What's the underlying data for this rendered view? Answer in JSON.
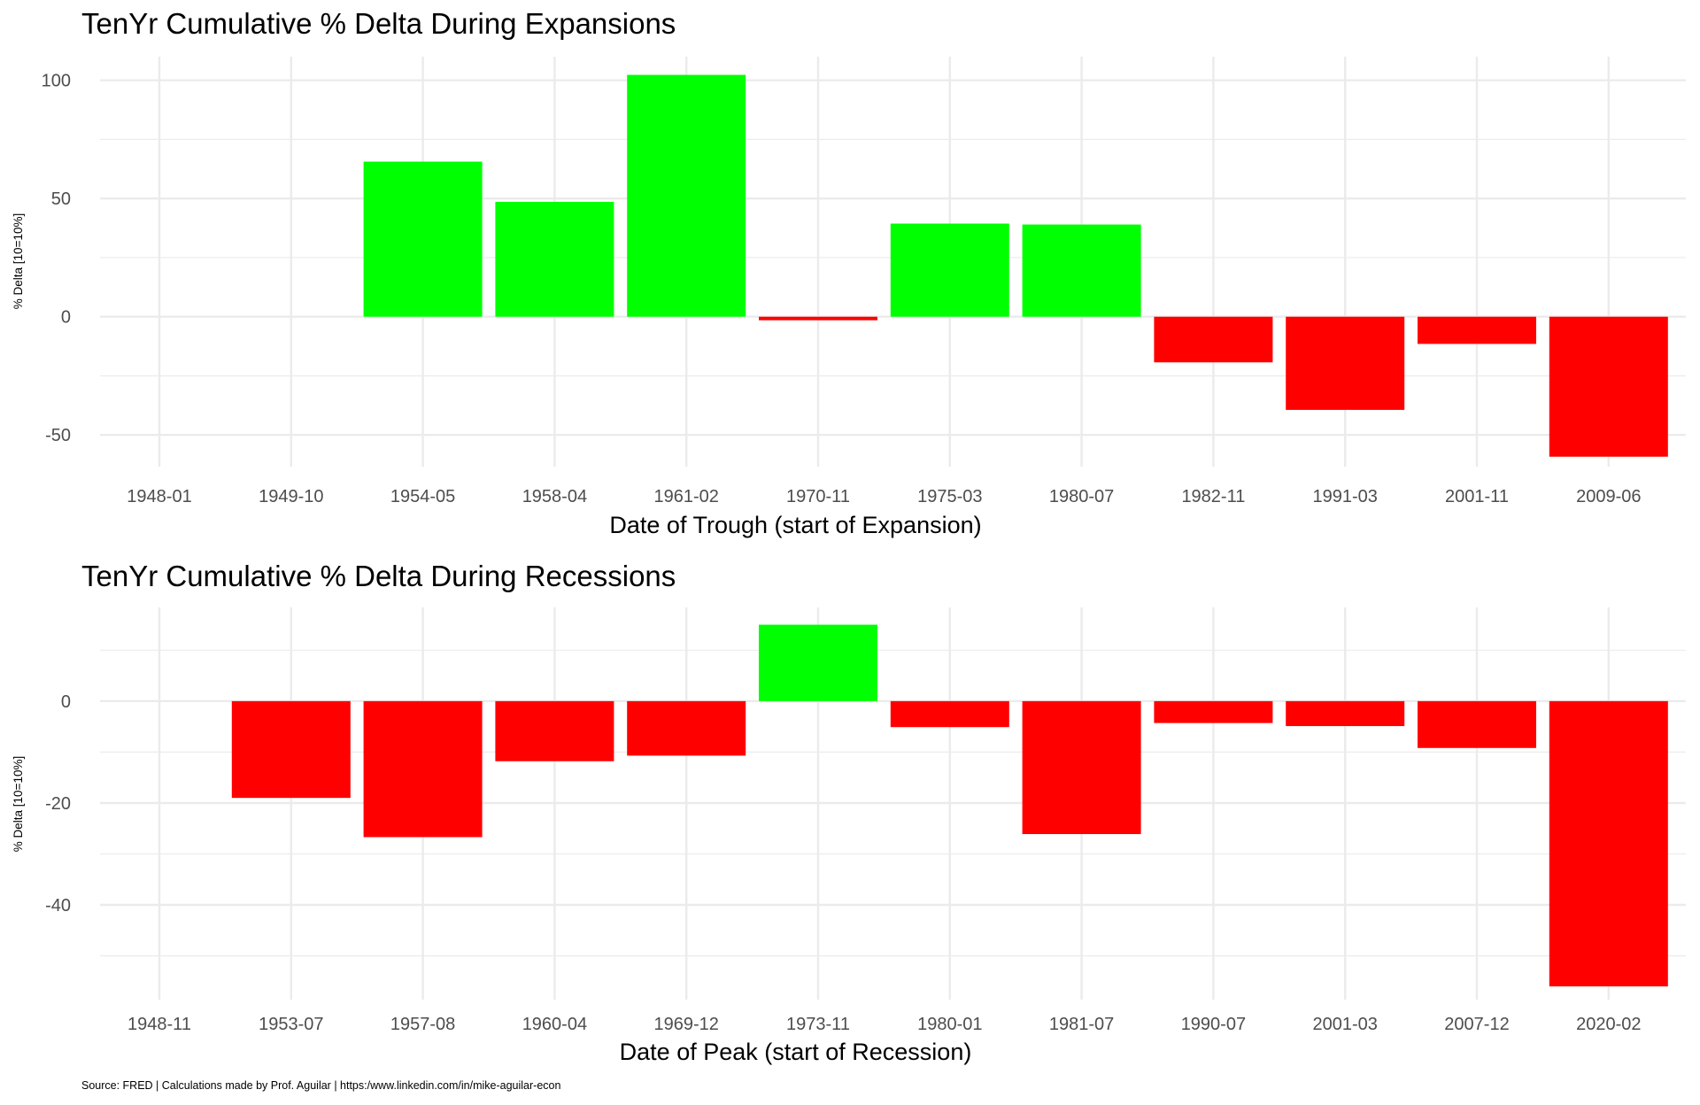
{
  "footer": "Source: FRED | Calculations made by Prof. Aguilar | https:/www.linkedin.com/in/mike-aguilar-econ",
  "colors": {
    "positive": "#00FF00",
    "negative": "#FF0000",
    "grid": "#EBEBEB"
  },
  "chart_data": [
    {
      "type": "bar",
      "title": "TenYr Cumulative % Delta During Expansions",
      "xlabel": "Date of Trough (start of Expansion)",
      "ylabel": "% Delta [10=10%]",
      "categories": [
        "1948-01",
        "1949-10",
        "1954-05",
        "1958-04",
        "1961-02",
        "1970-11",
        "1975-03",
        "1980-07",
        "1982-11",
        "1991-03",
        "2001-11",
        "2009-06"
      ],
      "values": [
        null,
        null,
        65.6,
        48.6,
        102.3,
        -1.5,
        39.4,
        39.0,
        -19.3,
        -39.4,
        -11.5,
        -59.2
      ],
      "yticks": [
        -50,
        0,
        50,
        100
      ],
      "ylim": [
        -63.4,
        110
      ],
      "grid": true,
      "legend": "none"
    },
    {
      "type": "bar",
      "title": "TenYr Cumulative % Delta During Recessions",
      "xlabel": "Date of Peak (start of Recession)",
      "ylabel": "% Delta [10=10%]",
      "categories": [
        "1948-11",
        "1953-07",
        "1957-08",
        "1960-04",
        "1969-12",
        "1973-11",
        "1980-01",
        "1981-07",
        "1990-07",
        "2001-03",
        "2007-12",
        "2020-02"
      ],
      "values": [
        null,
        -19.0,
        -26.7,
        -11.8,
        -10.7,
        15.0,
        -5.1,
        -26.1,
        -4.3,
        -4.9,
        -9.2,
        -56.0
      ],
      "yticks": [
        -40,
        -20,
        0
      ],
      "ylim": [
        -58.6,
        18.4
      ],
      "grid": true,
      "legend": "none"
    }
  ]
}
